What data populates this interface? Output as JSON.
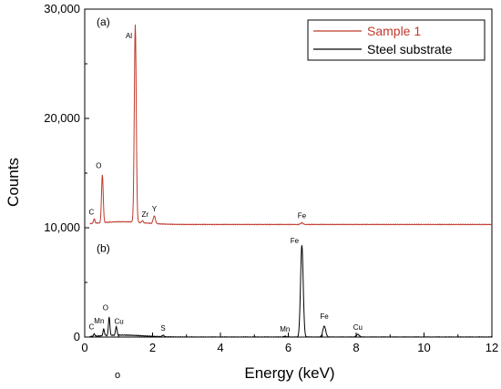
{
  "chart_data": {
    "type": "line",
    "xlabel": "Energy (keV)",
    "ylabel": "Counts",
    "xlim": [
      0,
      12
    ],
    "ylim": [
      0,
      30000
    ],
    "x_ticks": [
      0,
      2,
      4,
      6,
      8,
      10,
      12
    ],
    "y_ticks": [
      0,
      10000,
      20000,
      30000
    ],
    "y_tick_labels": [
      "0",
      "10,000",
      "20,000",
      "30,000"
    ],
    "grid": false,
    "legend": "top-right",
    "series": [
      {
        "name": "Sample 1",
        "color": "#c0392b",
        "baseline": 10300,
        "peaks": [
          {
            "label": "C",
            "x": 0.28,
            "y": 10700,
            "width": 0.03
          },
          {
            "label": "O",
            "x": 0.52,
            "y": 14700,
            "width": 0.035
          },
          {
            "label": "Al",
            "x": 1.49,
            "y": 28400,
            "width": 0.04
          },
          {
            "label": "Zr",
            "x": 1.7,
            "y": 10500,
            "width": 0.03
          },
          {
            "label": "Y",
            "x": 2.05,
            "y": 11000,
            "width": 0.045
          },
          {
            "label": "Fe",
            "x": 6.4,
            "y": 10450,
            "width": 0.05
          }
        ]
      },
      {
        "name": "Steel substrate",
        "color": "#000000",
        "baseline": 0,
        "peaks": [
          {
            "label": "C",
            "x": 0.28,
            "y": 200,
            "width": 0.03
          },
          {
            "label": "Mn",
            "x": 0.56,
            "y": 600,
            "width": 0.03
          },
          {
            "label": "O",
            "x": 0.72,
            "y": 1700,
            "width": 0.03
          },
          {
            "label": "Cu",
            "x": 0.93,
            "y": 800,
            "width": 0.03
          },
          {
            "label": "S",
            "x": 2.31,
            "y": 150,
            "width": 0.04
          },
          {
            "label": "Mn",
            "x": 5.9,
            "y": 80,
            "width": 0.05
          },
          {
            "label": "Fe",
            "x": 6.4,
            "y": 8400,
            "width": 0.055
          },
          {
            "label": "Fe",
            "x": 7.06,
            "y": 1000,
            "width": 0.06
          },
          {
            "label": "Cu",
            "x": 8.05,
            "y": 250,
            "width": 0.06
          }
        ]
      }
    ],
    "annotations": [
      {
        "text": "(a)",
        "x": 0.35,
        "y": 28500
      },
      {
        "text": "(b)",
        "x": 0.35,
        "y": 7800
      }
    ]
  },
  "stray_mark": "o"
}
